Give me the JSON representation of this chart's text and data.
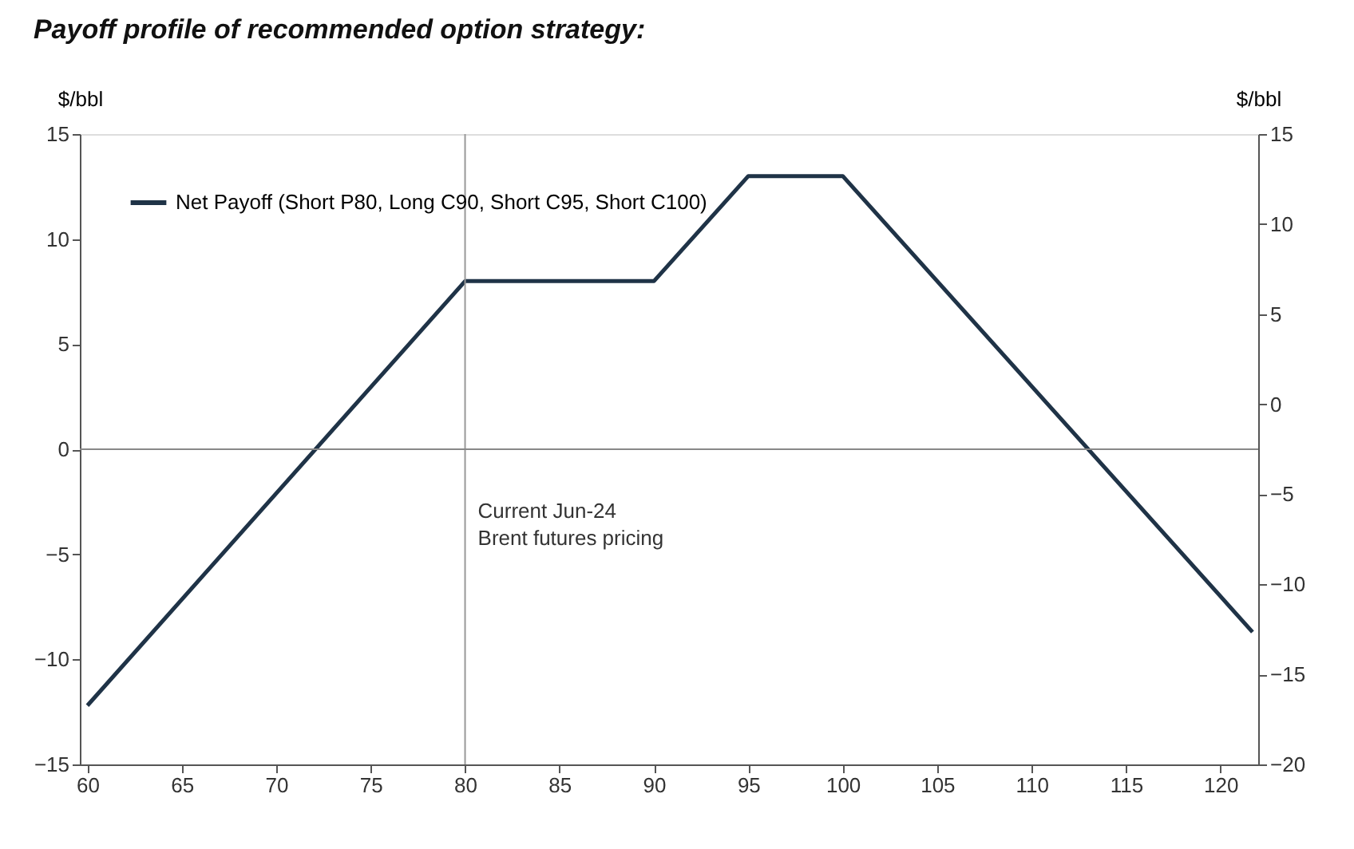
{
  "chart_data": {
    "type": "line",
    "title": "Payoff profile of recommended option strategy:",
    "ylabel": "$/bbl",
    "y2label": "$/bbl",
    "series": [
      {
        "name": "Net Payoff (Short P80, Long C90, Short C95, Short C100)",
        "color": "#1f3347",
        "x": [
          60,
          80,
          90,
          95,
          100,
          121.7
        ],
        "values": [
          -12.2,
          8,
          8,
          13,
          13,
          -8.7
        ]
      }
    ],
    "xlim": [
      59.6,
      122
    ],
    "xticks": [
      60,
      65,
      70,
      75,
      80,
      85,
      90,
      95,
      100,
      105,
      110,
      115,
      120
    ],
    "ylim": [
      -15,
      15
    ],
    "yticks": [
      -15,
      -10,
      -5,
      0,
      5,
      10,
      15
    ],
    "y2lim": [
      -20,
      15
    ],
    "y2ticks": [
      -20,
      -15,
      -10,
      -5,
      0,
      5,
      10,
      15
    ],
    "ref_lines": [
      {
        "axis": "x",
        "value": 80,
        "color": "#999999"
      },
      {
        "axis": "y",
        "value": 0,
        "color": "#888888"
      }
    ],
    "annotations": [
      {
        "text": "Current Jun-24\nBrent futures pricing",
        "x": 80,
        "y": -2.5
      }
    ],
    "grid": false,
    "legend": "top left",
    "marker": "none",
    "line_style": "solid"
  }
}
